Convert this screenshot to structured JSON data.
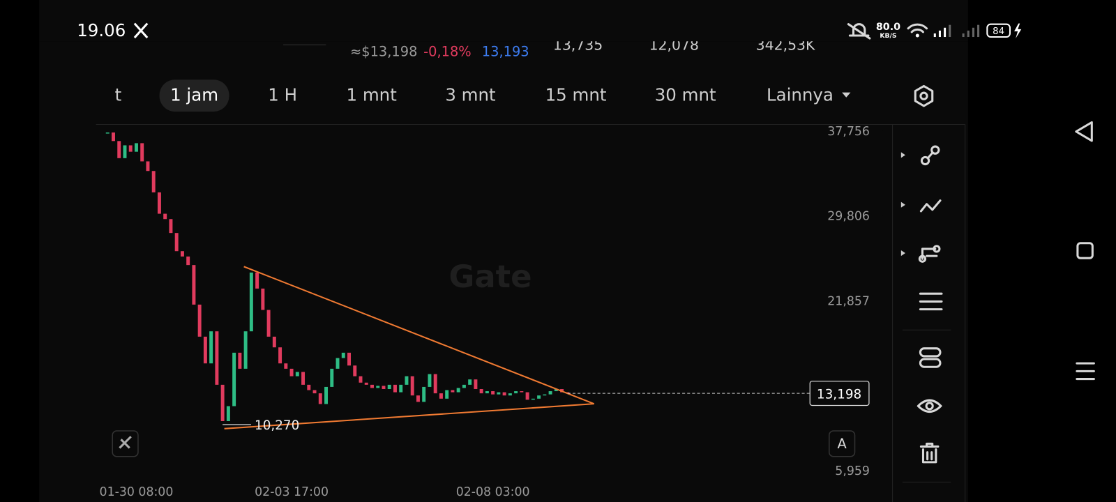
{
  "status_bar": {
    "time": "19.06",
    "speed": "80.0",
    "speed_unit": "KB/S",
    "battery": "84"
  },
  "header": {
    "usd_price": "≈$13,198",
    "change": "-0,18%",
    "last_price": "13,193",
    "stat_1": "13,735",
    "stat_2": "12,078",
    "stat_3": "342,53K"
  },
  "tabs": [
    "t",
    "1 jam",
    "1 H",
    "1 mnt",
    "3 mnt",
    "15 mnt",
    "30 mnt",
    "Lainnya"
  ],
  "watermark": "Gate",
  "scale_button": "A",
  "chart_data": {
    "type": "candlestick",
    "values": [
      37600,
      36800,
      35200,
      36400,
      35800,
      36600,
      34900,
      34000,
      32000,
      30000,
      29500,
      28200,
      26500,
      26000,
      25200,
      21500,
      18500,
      16000,
      19000,
      14000,
      10600,
      12000,
      17000,
      15500,
      19000,
      24500,
      23000,
      21000,
      18500,
      17500,
      16000,
      15500,
      14800,
      15200,
      14000,
      13500,
      13200,
      12200,
      13800,
      15500,
      16500,
      17000,
      15800,
      14800,
      14200,
      14000,
      13700,
      13900,
      13600,
      14000,
      13300,
      14000,
      14800,
      13000,
      12400,
      13800,
      15000,
      13200,
      12700,
      13500,
      13300,
      13700,
      14000,
      14500,
      13600,
      13200,
      13400,
      13100,
      13300,
      13000,
      13200,
      13400,
      13300,
      12600,
      12700,
      13000,
      13100,
      13400,
      13600,
      13300,
      13198
    ],
    "colors": {
      "up": "#2ebd85",
      "down": "#e13b5e",
      "trend": "#f07a32"
    },
    "xlim": [
      -2,
      136
    ],
    "ylim": [
      3432,
      38355
    ],
    "yticks": [
      {
        "value": 37756,
        "label": "37,756"
      },
      {
        "value": 29806,
        "label": "29,806"
      },
      {
        "value": 21857,
        "label": "21,857"
      },
      {
        "value": 5959,
        "label": "5,959"
      }
    ],
    "xticks": [
      {
        "value": 5,
        "label": "01-30 08:00"
      },
      {
        "value": 32,
        "label": "02-03 17:00"
      },
      {
        "value": 67,
        "label": "02-08 03:00"
      }
    ],
    "low_marker": {
      "x": 20,
      "value": 10270,
      "label": "10,270"
    },
    "current_price": {
      "value": 13198,
      "label": "13,198"
    },
    "trendlines": [
      {
        "x": [
          23.7,
          84.6
        ],
        "y": [
          25055,
          12220
        ]
      },
      {
        "x": [
          20.3,
          84.6
        ],
        "y": [
          9893,
          12220
        ]
      }
    ]
  }
}
